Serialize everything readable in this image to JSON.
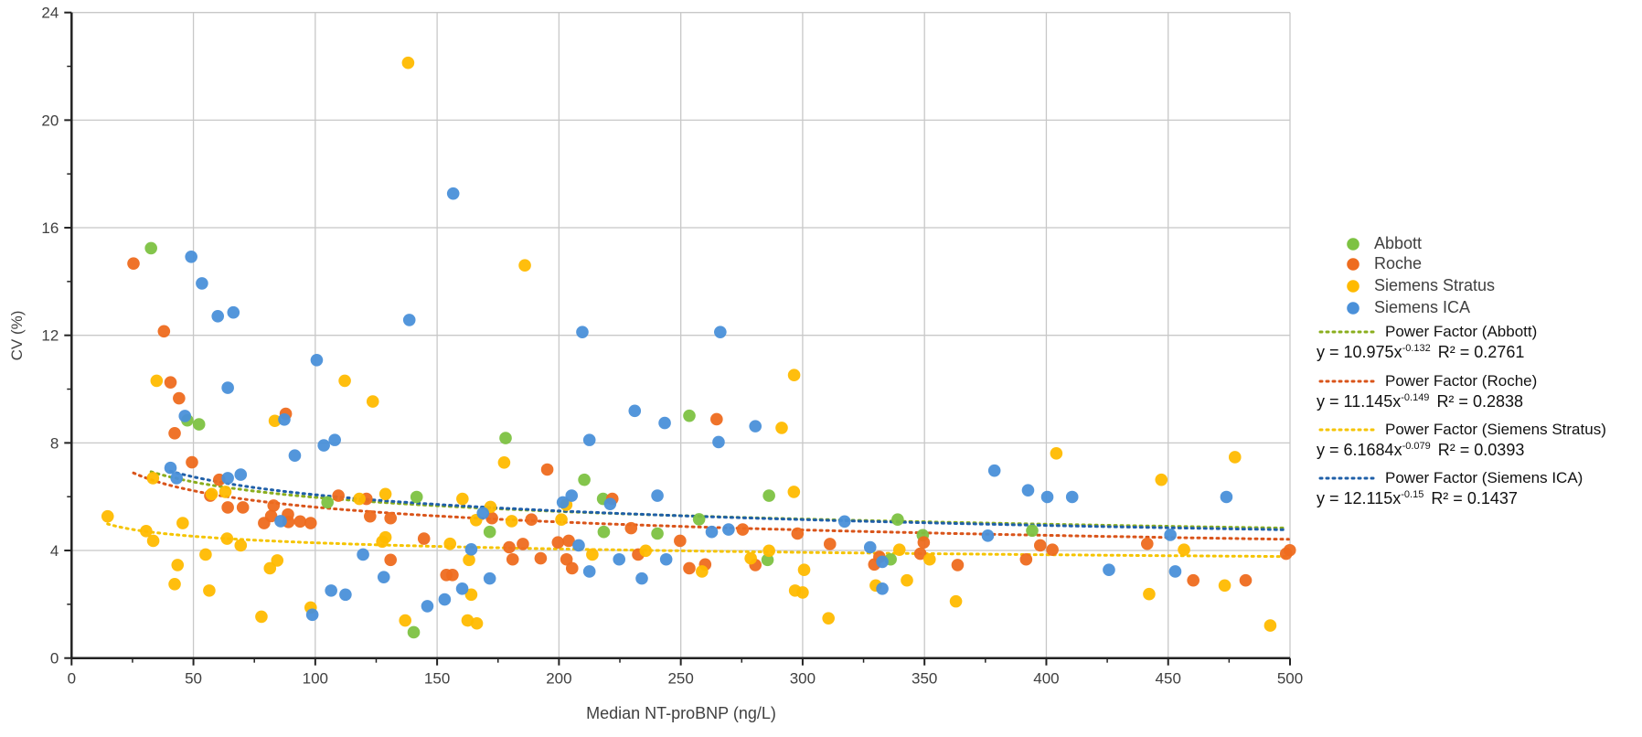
{
  "chart_data": {
    "type": "scatter",
    "title": "",
    "xlabel": "Median NT-proBNP (ng/L)",
    "ylabel": "CV (%)",
    "xlim": [
      0,
      500
    ],
    "ylim": [
      0,
      24
    ],
    "xticks": [
      "0",
      "50",
      "100",
      "150",
      "200",
      "250",
      "300",
      "350",
      "400",
      "450",
      "500"
    ],
    "yticks": [
      "0",
      "4",
      "8",
      "12",
      "16",
      "20",
      "24"
    ],
    "grid": true,
    "legend_position": "right",
    "series": [
      {
        "name": "Abbott",
        "color": "#7DC242",
        "trend": {
          "label": "Power Factor (Abbott)",
          "a": 10.975,
          "b": -0.132,
          "equation": "y = 10.975x",
          "exponent": "-0.132",
          "r2": "R² = 0.2761",
          "color": "#8AAE1E"
        },
        "points": [
          [
            32.6,
            15.24
          ],
          [
            47.5,
            8.84
          ],
          [
            52.3,
            8.69
          ],
          [
            105,
            5.79
          ],
          [
            141.6,
            5.99
          ],
          [
            140.4,
            0.96
          ],
          [
            178.1,
            8.18
          ],
          [
            210.4,
            6.63
          ],
          [
            218.1,
            5.92
          ],
          [
            286.2,
            6.04
          ],
          [
            171.6,
            4.69
          ],
          [
            218.4,
            4.69
          ],
          [
            240.4,
            4.63
          ],
          [
            257.5,
            5.16
          ],
          [
            285.6,
            3.65
          ],
          [
            253.5,
            9.01
          ],
          [
            339,
            5.15
          ],
          [
            349.3,
            4.57
          ],
          [
            394.2,
            4.74
          ],
          [
            336.1,
            3.67
          ]
        ]
      },
      {
        "name": "Roche",
        "color": "#EE6C1F",
        "trend": {
          "label": "Power Factor (Roche)",
          "a": 11.145,
          "b": -0.149,
          "equation": "y = 11.145x",
          "exponent": "-0.149",
          "r2": "R² = 0.2838",
          "color": "#D9541A"
        },
        "points": [
          [
            25.4,
            14.67
          ],
          [
            37.9,
            12.15
          ],
          [
            40.6,
            10.25
          ],
          [
            44.1,
            9.66
          ],
          [
            42.3,
            8.36
          ],
          [
            87.9,
            9.08
          ],
          [
            49.4,
            7.28
          ],
          [
            60.6,
            6.63
          ],
          [
            56.9,
            6.04
          ],
          [
            64.1,
            5.6
          ],
          [
            70.3,
            5.6
          ],
          [
            82.9,
            5.67
          ],
          [
            79,
            5.02
          ],
          [
            81.9,
            5.28
          ],
          [
            88.8,
            5.34
          ],
          [
            89,
            5.06
          ],
          [
            93.8,
            5.08
          ],
          [
            98.1,
            5.02
          ],
          [
            109.5,
            6.04
          ],
          [
            121,
            5.92
          ],
          [
            122.5,
            5.27
          ],
          [
            130.9,
            5.2
          ],
          [
            144.6,
            4.44
          ],
          [
            130.9,
            3.65
          ],
          [
            153.8,
            3.09
          ],
          [
            156.3,
            3.09
          ],
          [
            264.7,
            8.88
          ],
          [
            195.2,
            7.01
          ],
          [
            221.9,
            5.92
          ],
          [
            172.5,
            5.2
          ],
          [
            188.7,
            5.15
          ],
          [
            229.6,
            4.83
          ],
          [
            275.4,
            4.78
          ],
          [
            297.9,
            4.63
          ],
          [
            249.7,
            4.36
          ],
          [
            311.2,
            4.24
          ],
          [
            179.6,
            4.12
          ],
          [
            185.2,
            4.24
          ],
          [
            199.6,
            4.3
          ],
          [
            204,
            4.36
          ],
          [
            232.5,
            3.85
          ],
          [
            181,
            3.67
          ],
          [
            192.5,
            3.71
          ],
          [
            203.1,
            3.67
          ],
          [
            205.4,
            3.34
          ],
          [
            280.6,
            3.46
          ],
          [
            329.4,
            3.48
          ],
          [
            331.5,
            3.76
          ],
          [
            253.5,
            3.34
          ],
          [
            260,
            3.48
          ],
          [
            349.7,
            4.3
          ],
          [
            397.5,
            4.19
          ],
          [
            402.5,
            4.03
          ],
          [
            441.4,
            4.25
          ],
          [
            498.4,
            3.88
          ],
          [
            499.9,
            4.01
          ],
          [
            348.3,
            3.88
          ],
          [
            363.6,
            3.46
          ],
          [
            391.7,
            3.67
          ],
          [
            460.3,
            2.89
          ],
          [
            481.8,
            2.89
          ]
        ]
      },
      {
        "name": "Siemens Stratus",
        "color": "#FFBA00",
        "trend": {
          "label": "Power Factor (Siemens Stratus)",
          "a": 6.1684,
          "b": -0.079,
          "equation": "y = 6.1684x",
          "exponent": "-0.079",
          "r2": "R² = 0.0393",
          "color": "#F5C400"
        },
        "points": [
          [
            138.1,
            22.13
          ],
          [
            186,
            14.6
          ],
          [
            296.5,
            10.52
          ],
          [
            34.9,
            10.31
          ],
          [
            112.1,
            10.31
          ],
          [
            123.6,
            9.54
          ],
          [
            83.4,
            8.82
          ],
          [
            291.4,
            8.56
          ],
          [
            177.5,
            7.27
          ],
          [
            33.4,
            6.69
          ],
          [
            57.5,
            6.1
          ],
          [
            63.1,
            6.18
          ],
          [
            14.8,
            5.27
          ],
          [
            45.6,
            5.02
          ],
          [
            30.6,
            4.72
          ],
          [
            33.5,
            4.36
          ],
          [
            63.8,
            4.44
          ],
          [
            69.4,
            4.19
          ],
          [
            55,
            3.85
          ],
          [
            43.5,
            3.46
          ],
          [
            42.3,
            2.75
          ],
          [
            56.5,
            2.51
          ],
          [
            84.4,
            3.63
          ],
          [
            81.4,
            3.34
          ],
          [
            77.9,
            1.54
          ],
          [
            98.1,
            1.88
          ],
          [
            118.1,
            5.92
          ],
          [
            128.8,
            6.1
          ],
          [
            160.4,
            5.92
          ],
          [
            166,
            5.13
          ],
          [
            127.5,
            4.33
          ],
          [
            128.8,
            4.49
          ],
          [
            155.3,
            4.25
          ],
          [
            163.1,
            3.65
          ],
          [
            164,
            2.36
          ],
          [
            136.9,
            1.4
          ],
          [
            162.5,
            1.4
          ],
          [
            166.3,
            1.29
          ],
          [
            296.4,
            6.18
          ],
          [
            171.9,
            5.62
          ],
          [
            180.6,
            5.09
          ],
          [
            201,
            5.15
          ],
          [
            203,
            5.7
          ],
          [
            213.7,
            3.85
          ],
          [
            235.6,
            3.99
          ],
          [
            278.7,
            3.71
          ],
          [
            286.2,
            3.99
          ],
          [
            258.7,
            3.22
          ],
          [
            300.6,
            3.28
          ],
          [
            296.9,
            2.51
          ],
          [
            300,
            2.44
          ],
          [
            330,
            2.7
          ],
          [
            310.6,
            1.48
          ],
          [
            404.1,
            7.61
          ],
          [
            477.4,
            7.47
          ],
          [
            447.2,
            6.63
          ],
          [
            456.5,
            4.03
          ],
          [
            339.7,
            4.03
          ],
          [
            352.1,
            3.67
          ],
          [
            473.2,
            2.7
          ],
          [
            342.8,
            2.89
          ],
          [
            362.9,
            2.11
          ],
          [
            442.2,
            2.38
          ],
          [
            491.9,
            1.21
          ]
        ]
      },
      {
        "name": "Siemens ICA",
        "color": "#4A90D9",
        "trend": {
          "label": "Power Factor (Siemens ICA)",
          "a": 12.115,
          "b": -0.15,
          "equation": "y = 12.115x",
          "exponent": "-0.15",
          "r2": "R² = 0.1437",
          "color": "#1F5FA8"
        },
        "points": [
          [
            49.1,
            14.92
          ],
          [
            53.5,
            13.93
          ],
          [
            60,
            12.71
          ],
          [
            66.4,
            12.85
          ],
          [
            138.6,
            12.57
          ],
          [
            100.6,
            11.08
          ],
          [
            64.1,
            10.05
          ],
          [
            46.5,
            9.0
          ],
          [
            87.3,
            8.87
          ],
          [
            103.5,
            7.91
          ],
          [
            108,
            8.11
          ],
          [
            91.6,
            7.53
          ],
          [
            40.6,
            7.07
          ],
          [
            43.1,
            6.69
          ],
          [
            64.1,
            6.69
          ],
          [
            69.4,
            6.82
          ],
          [
            85.8,
            5.09
          ],
          [
            98.8,
            1.61
          ],
          [
            168.8,
            5.39
          ],
          [
            164,
            4.04
          ],
          [
            119.6,
            3.85
          ],
          [
            128.1,
            3.01
          ],
          [
            106.5,
            2.51
          ],
          [
            112.4,
            2.36
          ],
          [
            160.3,
            2.58
          ],
          [
            146,
            1.93
          ],
          [
            153.1,
            2.18
          ],
          [
            156.6,
            17.27
          ],
          [
            209.6,
            12.12
          ],
          [
            266.2,
            12.12
          ],
          [
            231.1,
            9.19
          ],
          [
            243.4,
            8.74
          ],
          [
            280.6,
            8.62
          ],
          [
            265.5,
            8.03
          ],
          [
            212.5,
            8.11
          ],
          [
            201.6,
            5.79
          ],
          [
            205.2,
            6.04
          ],
          [
            221,
            5.73
          ],
          [
            240.4,
            6.04
          ],
          [
            262.7,
            4.69
          ],
          [
            269.6,
            4.78
          ],
          [
            317.2,
            5.08
          ],
          [
            327.7,
            4.12
          ],
          [
            208.1,
            4.19
          ],
          [
            224.7,
            3.67
          ],
          [
            244,
            3.67
          ],
          [
            332.7,
            3.58
          ],
          [
            171.6,
            2.96
          ],
          [
            212.5,
            3.22
          ],
          [
            234,
            2.96
          ],
          [
            332.7,
            2.58
          ],
          [
            378.7,
            6.97
          ],
          [
            392.5,
            6.24
          ],
          [
            400.4,
            5.99
          ],
          [
            410.6,
            5.99
          ],
          [
            473.9,
            5.99
          ],
          [
            376,
            4.55
          ],
          [
            450.9,
            4.58
          ],
          [
            425.7,
            3.28
          ],
          [
            452.9,
            3.22
          ]
        ]
      }
    ]
  }
}
